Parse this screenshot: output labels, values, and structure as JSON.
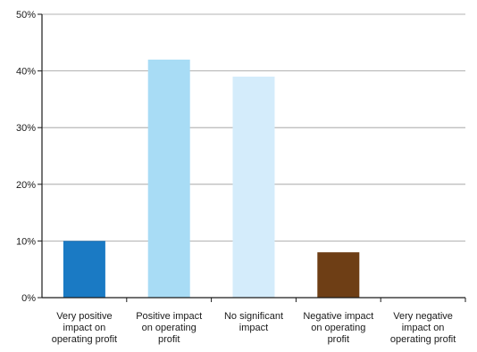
{
  "chart_data": {
    "type": "bar",
    "title": "",
    "xlabel": "",
    "ylabel": "",
    "categories": [
      [
        "Very positive",
        "impact on",
        "operating profit"
      ],
      [
        "Positive impact",
        "on operating",
        "profit"
      ],
      [
        "No significant",
        "impact"
      ],
      [
        "Negative impact",
        "on operating",
        "profit"
      ],
      [
        "Very negative",
        "impact on",
        "operating profit"
      ]
    ],
    "values": [
      10,
      42,
      39,
      8,
      0
    ],
    "colors": [
      "#1a7ac4",
      "#a8dcf5",
      "#d4ecfb",
      "#6e3e15",
      "#6e3e15"
    ],
    "ylim": [
      0,
      50
    ],
    "yticks": [
      0,
      10,
      20,
      30,
      40,
      50
    ],
    "ytick_labels": [
      "0%",
      "10%",
      "20%",
      "30%",
      "40%",
      "50%"
    ],
    "grid": true,
    "legend": "none"
  }
}
